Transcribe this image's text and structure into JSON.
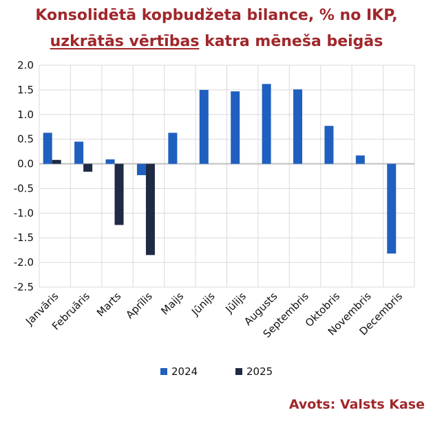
{
  "title_line1": "Konsolidētā kopbudžeta bilance, % no IKP,",
  "title_line2_underlined": "uzkrātās vērtības",
  "title_line2_rest": " katra mēneša beigās",
  "source": "Avots: Valsts Kase",
  "chart_data": {
    "type": "bar",
    "categories": [
      "Janvāris",
      "Februāris",
      "Marts",
      "Aprīlis",
      "Maijs",
      "Jūnijs",
      "Jūlijs",
      "Augusts",
      "Septembris",
      "Oktobris",
      "Novembris",
      "Decembris"
    ],
    "series": [
      {
        "name": "2024",
        "color": "#1f5fbf",
        "values": [
          0.63,
          0.45,
          0.09,
          -0.23,
          0.63,
          1.5,
          1.47,
          1.62,
          1.51,
          0.77,
          0.17,
          -1.82
        ]
      },
      {
        "name": "2025",
        "color": "#1f2a44",
        "values": [
          0.08,
          -0.16,
          -1.24,
          -1.85,
          null,
          null,
          null,
          null,
          null,
          null,
          null,
          null
        ]
      }
    ],
    "ylim": [
      -2.5,
      2.0
    ],
    "yticks": [
      "2.0",
      "1.5",
      "1.0",
      "0.5",
      "0.0",
      "-0.5",
      "-1.0",
      "-1.5",
      "-2.0",
      "-2.5"
    ],
    "grid": true,
    "legend": "bottom"
  }
}
